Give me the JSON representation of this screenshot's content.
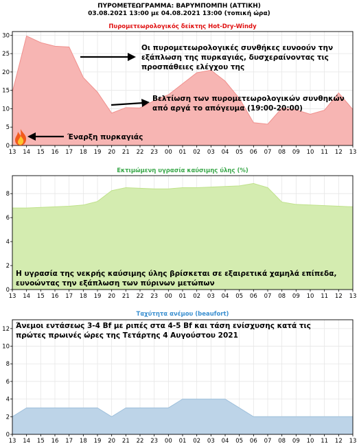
{
  "header": {
    "title": "ΠΥΡΟΜΕΤΕΩΓΡΑΜΜΑ: ΒΑΡΥΜΠΟΜΠΗ (ΑΤΤΙΚΗ)",
    "subtitle": "03.08.2021 13:00 με 04.08.2021 13:00 (τοπική ώρα)"
  },
  "chart_data": [
    {
      "type": "area",
      "title": "Πυρομετεωρολογικός δείκτης Hot-Dry-Windy",
      "title_color": "#e01010",
      "fill_color": "#f7b5b3",
      "line_color": "#f08f8c",
      "x": [
        "13",
        "14",
        "15",
        "16",
        "17",
        "18",
        "19",
        "20",
        "21",
        "22",
        "23",
        "00",
        "01",
        "02",
        "03",
        "04",
        "05",
        "06",
        "07",
        "08",
        "09",
        "10",
        "11",
        "12",
        "13"
      ],
      "values": [
        14.5,
        29.8,
        28,
        27,
        26.8,
        18.5,
        14.5,
        8.8,
        10.3,
        10.2,
        12.2,
        13.8,
        16.8,
        19.8,
        20.5,
        17.5,
        12.8,
        6.2,
        5.8,
        10.2,
        9.7,
        8.5,
        9.6,
        14.3,
        9.8
      ],
      "ylim": [
        0,
        31
      ],
      "yticks": [
        0,
        5,
        10,
        15,
        20,
        25,
        30
      ],
      "grid": true,
      "annotations": {
        "a1": "Οι πυρομετεωρολογικές συνθήκες ευνοούν την εξάπλωση της πυρκαγιάς, δυσχεραίνοντας τις προσπάθειες ελέγχου της",
        "a2": "Βελτίωση των πυρομετεωρολογικών συνθηκών από αργά το απόγευμα (19:00-20:00)",
        "a3": "Έναρξη πυρκαγιάς"
      },
      "fire_icon": "fire-icon"
    },
    {
      "type": "area",
      "title": "Εκτιμώμενη υγρασία καύσιμης ύλης (%)",
      "title_color": "#3aa84a",
      "fill_color": "#d4ecb0",
      "line_color": "#bfe28a",
      "x": [
        "13",
        "14",
        "15",
        "16",
        "17",
        "18",
        "19",
        "20",
        "21",
        "22",
        "23",
        "00",
        "01",
        "02",
        "03",
        "04",
        "05",
        "06",
        "07",
        "08",
        "09",
        "10",
        "11",
        "12",
        "13"
      ],
      "values": [
        6.8,
        6.8,
        6.85,
        6.9,
        6.95,
        7.05,
        7.35,
        8.25,
        8.5,
        8.45,
        8.4,
        8.4,
        8.5,
        8.5,
        8.55,
        8.6,
        8.65,
        8.85,
        8.5,
        7.3,
        7.1,
        7.05,
        7.0,
        6.95,
        6.9
      ],
      "ylim": [
        0,
        9.5
      ],
      "yticks": [
        0,
        2,
        4,
        6,
        8
      ],
      "grid": true,
      "annotations": {
        "a1": "Η υγρασία της νεκρής καύσιμης ύλης βρίσκεται σε εξαιρετικά χαμηλά επίπεδα, ευνοώντας την εξάπλωση των πύρινων μετώπων"
      }
    },
    {
      "type": "area",
      "title": "Ταχύτητα ανέμου (beaufort)",
      "title_color": "#3a8fd0",
      "fill_color": "#bdd4e8",
      "line_color": "#9dbfdb",
      "x": [
        "13",
        "14",
        "15",
        "16",
        "17",
        "18",
        "19",
        "20",
        "21",
        "22",
        "23",
        "00",
        "01",
        "02",
        "03",
        "04",
        "05",
        "06",
        "07",
        "08",
        "09",
        "10",
        "11",
        "12",
        "13"
      ],
      "values": [
        2,
        3,
        3,
        3,
        3,
        3,
        3,
        2,
        3,
        3,
        3,
        3,
        4,
        4,
        4,
        4,
        3,
        2,
        2,
        2,
        2,
        2,
        2,
        2,
        2
      ],
      "ylim": [
        0,
        13
      ],
      "yticks": [
        0,
        2,
        4,
        6,
        8,
        10,
        12
      ],
      "grid": true,
      "annotations": {
        "a1": "Άνεμοι εντάσεως 3-4 Bf με ριπές στα 4-5 Bf και τάση ενίσχυσης κατά τις πρώτες πρωινές ώρες της Τετάρτης 4 Αυγούστου 2021"
      }
    }
  ]
}
